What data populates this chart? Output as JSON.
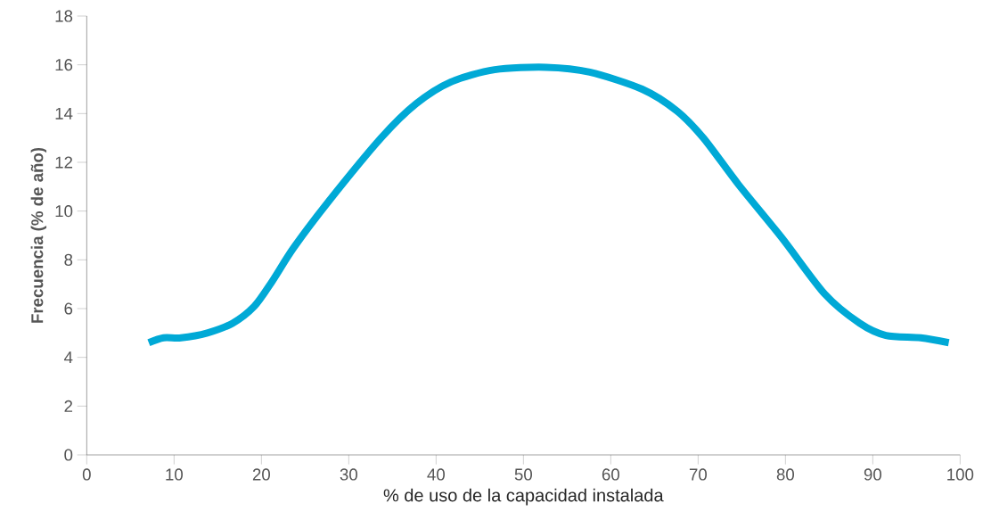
{
  "chart_data": {
    "type": "line",
    "xlabel": "% de uso de la capacidad instalada",
    "ylabel": "Frecuencia (% de año)",
    "x": [
      7.1,
      8.8,
      10.8,
      13.8,
      16.7,
      19.2,
      21.2,
      23.7,
      27.7,
      33.7,
      37.7,
      41.7,
      46.7,
      52.6,
      57.6,
      63.6,
      67.6,
      70.6,
      74.6,
      79.6,
      84.5,
      88.5,
      91.5,
      95.5,
      98.7
    ],
    "values": [
      4.6,
      4.8,
      4.8,
      5.0,
      5.4,
      6.1,
      7.1,
      8.5,
      10.4,
      13.0,
      14.4,
      15.3,
      15.8,
      15.9,
      15.7,
      15.0,
      14.1,
      13.0,
      11.1,
      8.9,
      6.6,
      5.4,
      4.9,
      4.8,
      4.6
    ],
    "color": "#00a9d6",
    "marker": "none",
    "line_style": "solid",
    "grid": false,
    "xlim": [
      0,
      100
    ],
    "ylim": [
      0,
      18
    ],
    "xticks": [
      0,
      10,
      20,
      30,
      40,
      50,
      60,
      70,
      80,
      90,
      100
    ],
    "yticks": [
      0,
      2,
      4,
      6,
      8,
      10,
      12,
      14,
      16,
      18
    ]
  }
}
